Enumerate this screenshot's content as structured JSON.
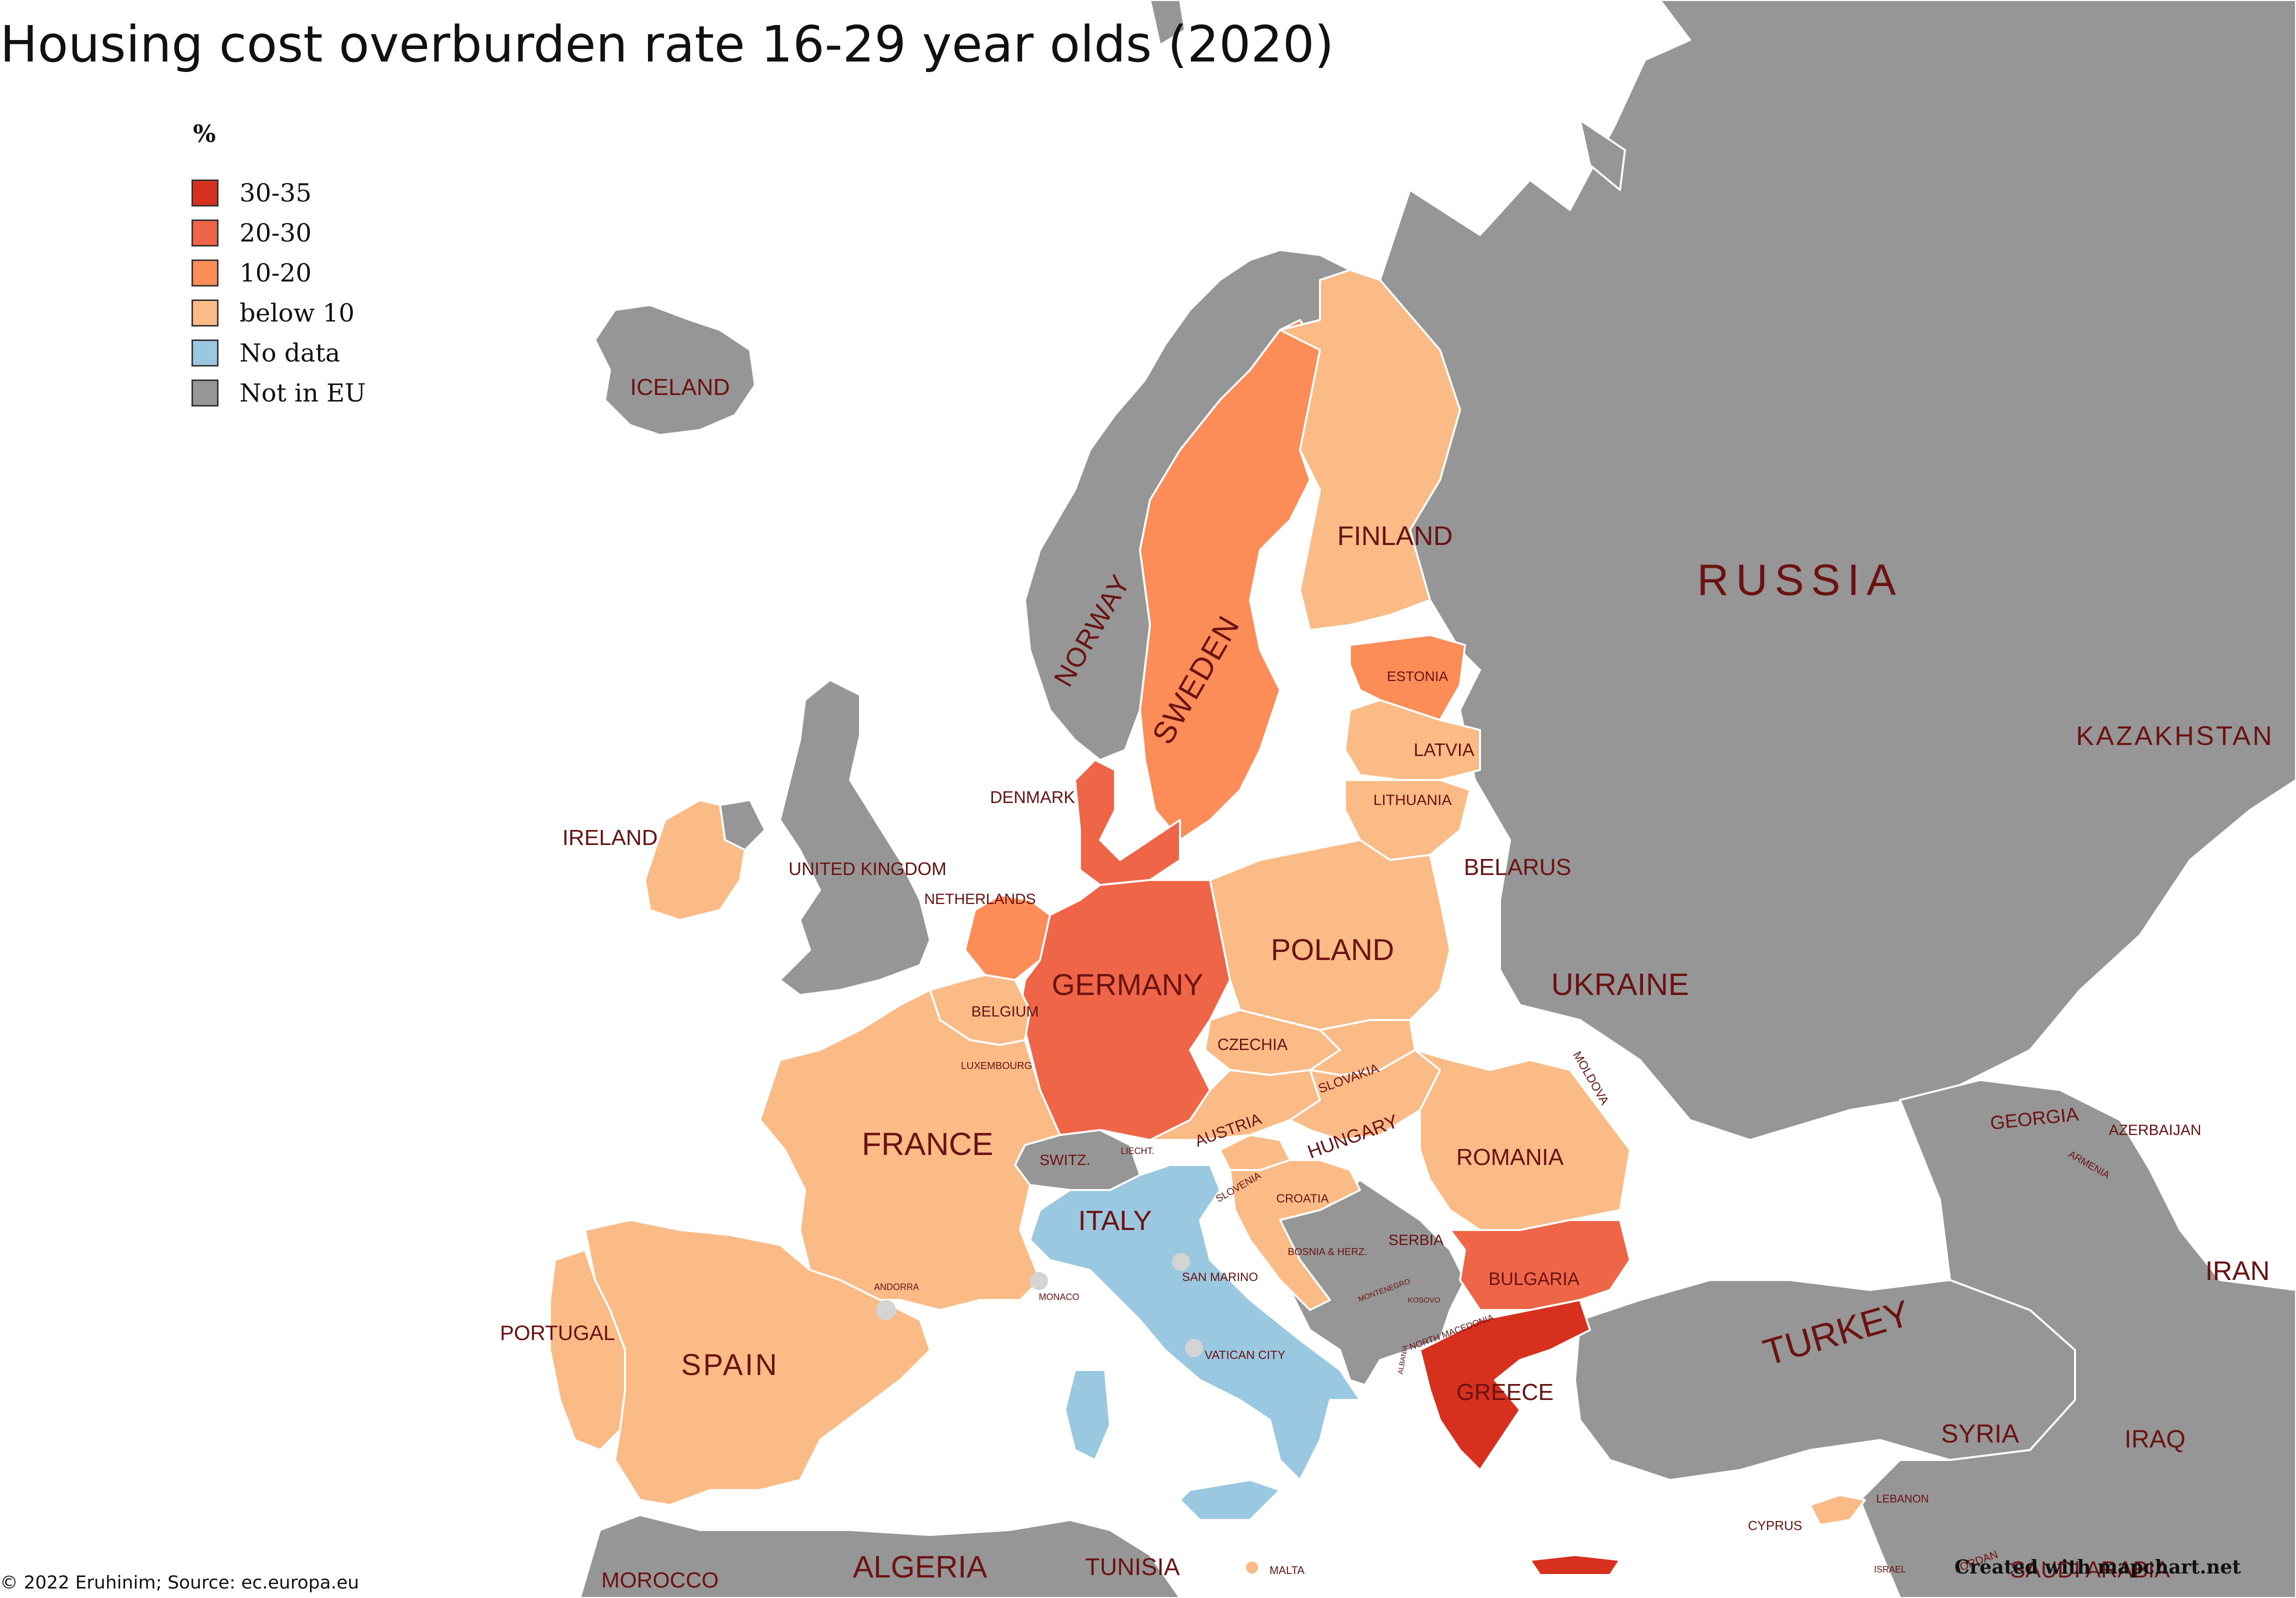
{
  "title": "Housing cost overburden rate 16-29 year olds (2020)",
  "legend": {
    "title": "%",
    "items": [
      {
        "label": "30-35",
        "color": "#d7301f"
      },
      {
        "label": "20-30",
        "color": "#ef6548"
      },
      {
        "label": "10-20",
        "color": "#fc8d59"
      },
      {
        "label": "below 10",
        "color": "#fbbb87"
      },
      {
        "label": "No data",
        "color": "#9ac8e0"
      },
      {
        "label": "Not in EU",
        "color": "#969696"
      }
    ]
  },
  "colors": {
    "non_eu": "#969696",
    "sea": "#ffffff",
    "lake": "#d9e6ea",
    "border": "#ffffff",
    "label": "#6b1212",
    "microstate": "#d4d4d4"
  },
  "countries": {
    "iceland": {
      "label": "ICELAND",
      "category": "Not in EU"
    },
    "norway": {
      "label": "NORWAY",
      "category": "Not in EU"
    },
    "sweden": {
      "label": "SWEDEN",
      "category": "10-20"
    },
    "finland": {
      "label": "FINLAND",
      "category": "below 10"
    },
    "russia": {
      "label": "RUSSIA",
      "category": "Not in EU"
    },
    "kazakhstan": {
      "label": "KAZAKHSTAN",
      "category": "Not in EU"
    },
    "estonia": {
      "label": "ESTONIA",
      "category": "10-20"
    },
    "latvia": {
      "label": "LATVIA",
      "category": "below 10"
    },
    "lithuania": {
      "label": "LITHUANIA",
      "category": "below 10"
    },
    "belarus": {
      "label": "BELARUS",
      "category": "Not in EU"
    },
    "denmark": {
      "label": "DENMARK",
      "category": "20-30"
    },
    "ireland": {
      "label": "IRELAND",
      "category": "below 10"
    },
    "united_kingdom": {
      "label": "UNITED KINGDOM",
      "category": "Not in EU"
    },
    "netherlands": {
      "label": "NETHERLANDS",
      "category": "10-20"
    },
    "germany": {
      "label": "GERMANY",
      "category": "20-30"
    },
    "poland": {
      "label": "POLAND",
      "category": "below 10"
    },
    "ukraine": {
      "label": "UKRAINE",
      "category": "Not in EU"
    },
    "belgium": {
      "label": "BELGIUM",
      "category": "below 10"
    },
    "luxembourg": {
      "label": "LUXEMBOURG",
      "category": "below 10"
    },
    "czechia": {
      "label": "CZECHIA",
      "category": "below 10"
    },
    "slovakia": {
      "label": "SLOVAKIA",
      "category": "below 10"
    },
    "moldova": {
      "label": "MOLDOVA",
      "category": "Not in EU"
    },
    "france": {
      "label": "FRANCE",
      "category": "below 10"
    },
    "austria": {
      "label": "AUSTRIA",
      "category": "below 10"
    },
    "hungary": {
      "label": "HUNGARY",
      "category": "below 10"
    },
    "romania": {
      "label": "ROMANIA",
      "category": "below 10"
    },
    "switzerland": {
      "label": "SWITZ.",
      "category": "Not in EU"
    },
    "liechtenstein": {
      "label": "LIECHT.",
      "category": "Not in EU"
    },
    "slovenia": {
      "label": "SLOVENIA",
      "category": "below 10"
    },
    "croatia": {
      "label": "CROATIA",
      "category": "below 10"
    },
    "italy": {
      "label": "ITALY",
      "category": "No data"
    },
    "bosnia": {
      "label": "BOSNIA & HERZ.",
      "category": "Not in EU"
    },
    "serbia": {
      "label": "SERBIA",
      "category": "Not in EU"
    },
    "bulgaria": {
      "label": "BULGARIA",
      "category": "20-30"
    },
    "montenegro": {
      "label": "MONTENEGRO",
      "category": "Not in EU"
    },
    "kosovo": {
      "label": "KOSOVO",
      "category": "Not in EU"
    },
    "north_macedonia": {
      "label": "NORTH MACEDONIA",
      "category": "Not in EU"
    },
    "albania": {
      "label": "ALBANIA",
      "category": "Not in EU"
    },
    "greece": {
      "label": "GREECE",
      "category": "30-35"
    },
    "turkey": {
      "label": "TURKEY",
      "category": "Not in EU"
    },
    "georgia": {
      "label": "GEORGIA",
      "category": "Not in EU"
    },
    "azerbaijan": {
      "label": "AZERBAIJAN",
      "category": "Not in EU"
    },
    "armenia": {
      "label": "ARMENIA",
      "category": "Not in EU"
    },
    "iran": {
      "label": "IRAN",
      "category": "Not in EU"
    },
    "syria": {
      "label": "SYRIA",
      "category": "Not in EU"
    },
    "iraq": {
      "label": "IRAQ",
      "category": "Not in EU"
    },
    "lebanon": {
      "label": "LEBANON",
      "category": "Not in EU"
    },
    "israel": {
      "label": "ISRAEL",
      "category": "Not in EU"
    },
    "jordan": {
      "label": "JORDAN",
      "category": "Not in EU"
    },
    "saudi_arabia": {
      "label": "SAUDI ARABIA",
      "category": "Not in EU"
    },
    "cyprus": {
      "label": "CYPRUS",
      "category": "below 10"
    },
    "malta": {
      "label": "MALTA",
      "category": "below 10"
    },
    "portugal": {
      "label": "PORTUGAL",
      "category": "below 10"
    },
    "spain": {
      "label": "SPAIN",
      "category": "below 10"
    },
    "andorra": {
      "label": "ANDORRA",
      "category": "Not in EU"
    },
    "monaco": {
      "label": "MONACO",
      "category": "Not in EU"
    },
    "san_marino": {
      "label": "SAN MARINO",
      "category": "Not in EU"
    },
    "vatican_city": {
      "label": "VATICAN CITY",
      "category": "Not in EU"
    },
    "morocco": {
      "label": "MOROCCO",
      "category": "Not in EU"
    },
    "algeria": {
      "label": "ALGERIA",
      "category": "Not in EU"
    },
    "tunisia": {
      "label": "TUNISIA",
      "category": "Not in EU"
    }
  },
  "credit": "© 2022 Eruhinim; Source: ec.europa.eu",
  "watermark": "Created with mapchart.net"
}
